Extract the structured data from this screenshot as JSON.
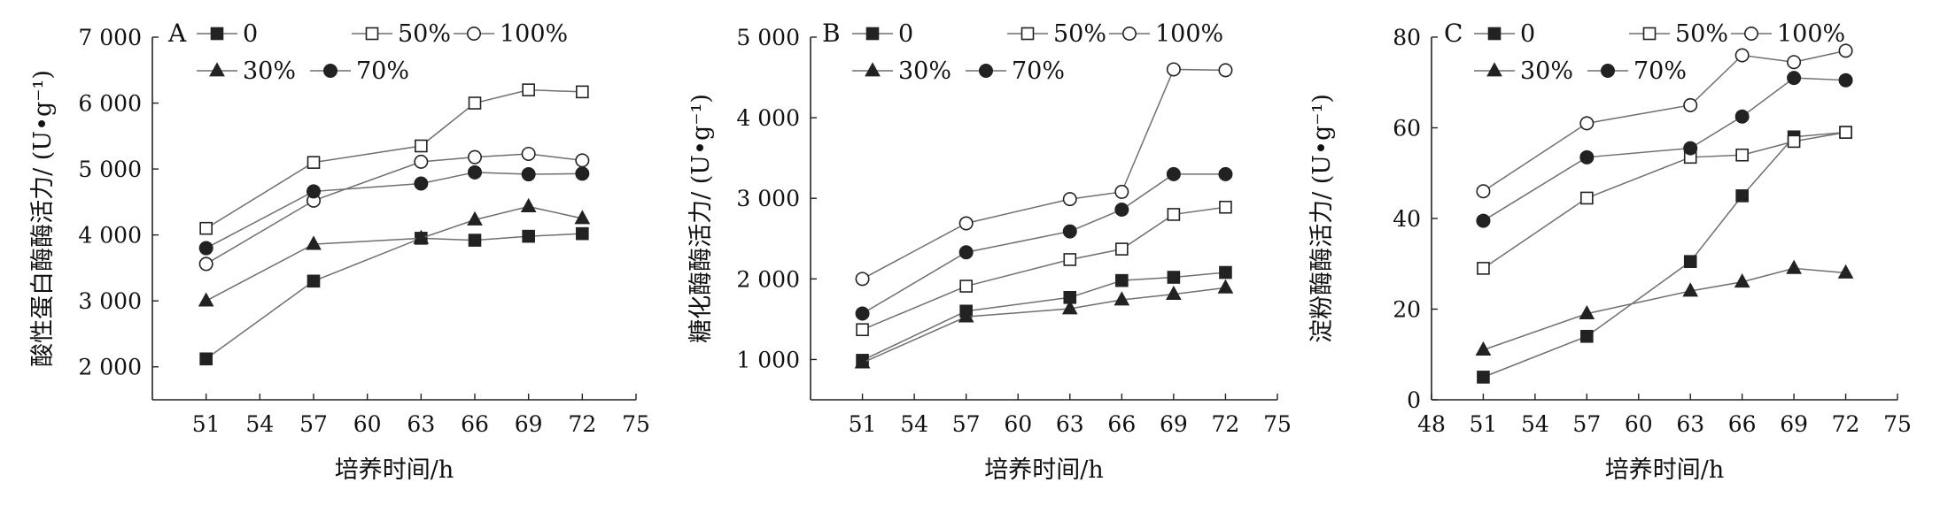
{
  "colors": {
    "ink": "#222222",
    "line": "#6f6f6f",
    "background": "#ffffff"
  },
  "chart_data": [
    {
      "type": "line",
      "panel": "A",
      "xlabel": "培养时间/h",
      "ylabel": "酸性蛋白酶酶活力/ (U•g⁻¹)",
      "xlim": [
        48,
        75
      ],
      "xticks": [
        51,
        54,
        57,
        60,
        63,
        66,
        69,
        72,
        75
      ],
      "xtick_labels": [
        "51",
        "54",
        "57",
        "60",
        "63",
        "66",
        "69",
        "72",
        "75"
      ],
      "ylim": [
        1500,
        7000
      ],
      "yticks": [
        2000,
        3000,
        4000,
        5000,
        6000,
        7000
      ],
      "ytick_labels": [
        "2 000",
        "3 000",
        "4 000",
        "5 000",
        "6 000",
        "7 000"
      ],
      "grid": false,
      "legend_position": "top-left",
      "x": [
        51,
        57,
        63,
        66,
        69,
        72
      ],
      "series": [
        {
          "name": "0",
          "marker": "square-filled",
          "values": [
            2120,
            3300,
            3950,
            3920,
            3980,
            4020
          ]
        },
        {
          "name": "50%",
          "marker": "square-open",
          "values": [
            4100,
            5100,
            5350,
            6000,
            6200,
            6170
          ]
        },
        {
          "name": "100%",
          "marker": "circle-open",
          "values": [
            3560,
            4520,
            5110,
            5180,
            5230,
            5130
          ]
        },
        {
          "name": "30%",
          "marker": "triangle-filled",
          "values": [
            3000,
            3860,
            3950,
            4230,
            4430,
            4250
          ]
        },
        {
          "name": "70%",
          "marker": "circle-filled",
          "values": [
            3800,
            4660,
            4780,
            4950,
            4920,
            4930
          ]
        }
      ]
    },
    {
      "type": "line",
      "panel": "B",
      "xlabel": "培养时间/h",
      "ylabel": "糖化酶酶活力/ (U•g⁻¹)",
      "xlim": [
        48,
        75
      ],
      "xticks": [
        51,
        54,
        57,
        60,
        63,
        66,
        69,
        72,
        75
      ],
      "xtick_labels": [
        "51",
        "54",
        "57",
        "60",
        "63",
        "66",
        "69",
        "72",
        "75"
      ],
      "ylim": [
        500,
        5000
      ],
      "yticks": [
        1000,
        2000,
        3000,
        4000,
        5000
      ],
      "ytick_labels": [
        "1 000",
        "2 000",
        "3 000",
        "4 000",
        "5 000"
      ],
      "grid": false,
      "legend_position": "top-left",
      "x": [
        51,
        57,
        63,
        66,
        69,
        72
      ],
      "series": [
        {
          "name": "0",
          "marker": "square-filled",
          "values": [
            990,
            1600,
            1770,
            1980,
            2020,
            2080
          ]
        },
        {
          "name": "50%",
          "marker": "square-open",
          "values": [
            1370,
            1910,
            2240,
            2370,
            2800,
            2890
          ]
        },
        {
          "name": "100%",
          "marker": "circle-open",
          "values": [
            2000,
            2690,
            2990,
            3080,
            4600,
            4590
          ]
        },
        {
          "name": "30%",
          "marker": "triangle-filled",
          "values": [
            960,
            1530,
            1630,
            1740,
            1810,
            1890
          ]
        },
        {
          "name": "70%",
          "marker": "circle-filled",
          "values": [
            1570,
            2330,
            2590,
            2860,
            3300,
            3300
          ]
        }
      ]
    },
    {
      "type": "line",
      "panel": "C",
      "xlabel": "培养时间/h",
      "ylabel": "淀粉酶酶活力/ (U•g⁻¹)",
      "xlim": [
        48,
        75
      ],
      "xticks": [
        48,
        51,
        54,
        57,
        60,
        63,
        66,
        69,
        72,
        75
      ],
      "xtick_labels": [
        "48",
        "51",
        "54",
        "57",
        "60",
        "63",
        "66",
        "69",
        "72",
        "75"
      ],
      "ylim": [
        0,
        80
      ],
      "yticks": [
        0,
        20,
        40,
        60,
        80
      ],
      "ytick_labels": [
        "0",
        "20",
        "40",
        "60",
        "80"
      ],
      "grid": false,
      "legend_position": "top-left",
      "x": [
        51,
        57,
        63,
        66,
        69,
        72
      ],
      "series": [
        {
          "name": "0",
          "marker": "square-filled",
          "values": [
            5,
            14,
            30.5,
            45,
            58,
            59
          ]
        },
        {
          "name": "50%",
          "marker": "square-open",
          "values": [
            29,
            44.5,
            53.5,
            54,
            57,
            59
          ]
        },
        {
          "name": "100%",
          "marker": "circle-open",
          "values": [
            46,
            61,
            65,
            76,
            74.5,
            77
          ]
        },
        {
          "name": "30%",
          "marker": "triangle-filled",
          "values": [
            11,
            19,
            24,
            26,
            29,
            28
          ]
        },
        {
          "name": "70%",
          "marker": "circle-filled",
          "values": [
            39.5,
            53.5,
            55.5,
            62.5,
            71,
            70.5
          ]
        }
      ]
    }
  ]
}
